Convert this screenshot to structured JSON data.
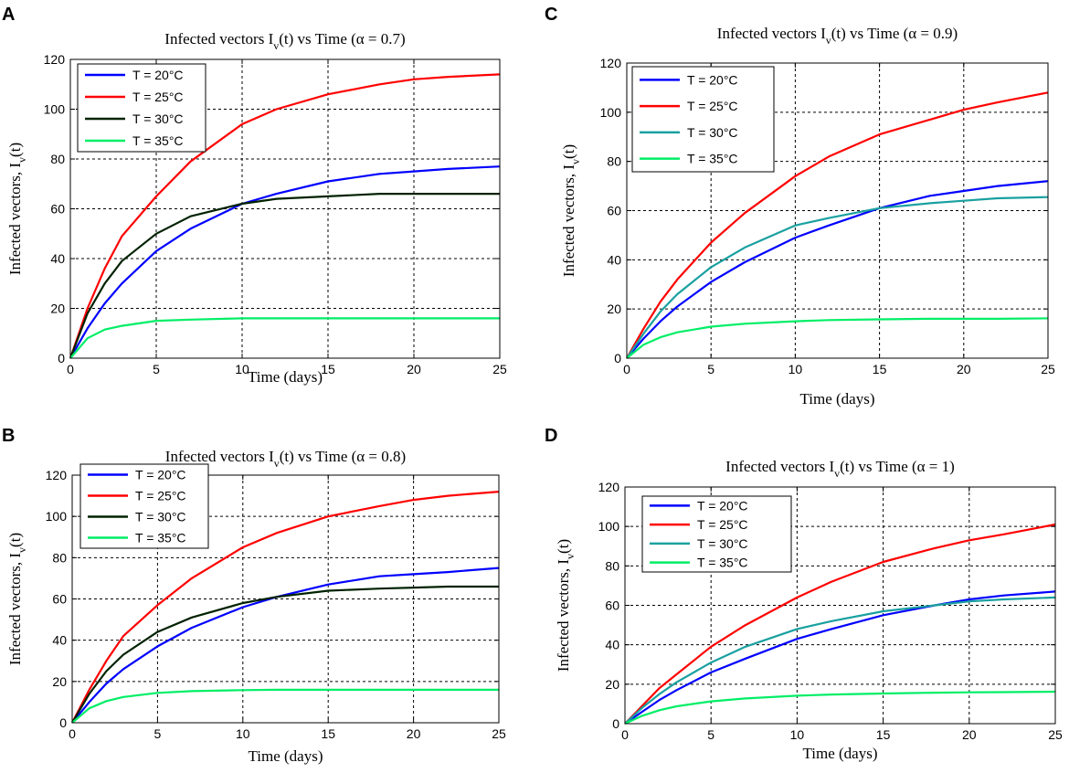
{
  "figure": {
    "panels": [
      "A",
      "B",
      "C",
      "D"
    ]
  },
  "chart_data": [
    {
      "panel": "A",
      "type": "line",
      "title": "Infected vectors I_v(t) vs Time (α = 0.7)",
      "title_main": "Infected vectors I",
      "title_sub": "v",
      "title_rest": "(t) vs Time (α = 0.7)",
      "xlabel": "Time (days)",
      "ylabel": "Infected vectors, I_v(t)",
      "ylabel_main": "Infected vectors, I",
      "ylabel_sub": "v",
      "ylabel_rest": "(t)",
      "xlim": [
        0,
        25
      ],
      "ylim": [
        0,
        120
      ],
      "xticks": [
        0,
        5,
        10,
        15,
        20,
        25
      ],
      "yticks": [
        0,
        20,
        40,
        60,
        80,
        100,
        120
      ],
      "grid": true,
      "legend_position": "top-left",
      "series": [
        {
          "name": "T = 20°C",
          "color": "#0000ff",
          "x": [
            0,
            1,
            2,
            3,
            5,
            7,
            10,
            12,
            15,
            18,
            20,
            22,
            25
          ],
          "values": [
            0,
            12,
            22,
            30,
            43,
            52,
            62,
            66,
            71,
            74,
            75,
            76,
            77
          ]
        },
        {
          "name": "T = 25°C",
          "color": "#ff0000",
          "x": [
            0,
            1,
            2,
            3,
            5,
            7,
            10,
            12,
            15,
            18,
            20,
            22,
            25
          ],
          "values": [
            0,
            20,
            36,
            49,
            65,
            79,
            94,
            100,
            106,
            110,
            112,
            113,
            114
          ]
        },
        {
          "name": "T = 30°C",
          "color": "#002200",
          "x": [
            0,
            1,
            2,
            3,
            5,
            7,
            10,
            12,
            15,
            18,
            20,
            22,
            25
          ],
          "values": [
            0,
            18,
            30,
            39,
            50,
            57,
            62,
            64,
            65,
            66,
            66,
            66,
            66
          ]
        },
        {
          "name": "T = 35°C",
          "color": "#00ee66",
          "x": [
            0,
            1,
            2,
            3,
            5,
            7,
            10,
            12,
            15,
            18,
            20,
            22,
            25
          ],
          "values": [
            0,
            8,
            11.5,
            13,
            15,
            15.5,
            16,
            16,
            16,
            16,
            16,
            16,
            16
          ]
        }
      ]
    },
    {
      "panel": "B",
      "type": "line",
      "title": "Infected vectors I_v(t) vs Time (α = 0.8)",
      "title_main": "Infected vectors I",
      "title_sub": "v",
      "title_rest": "(t) vs Time (α = 0.8)",
      "xlabel": "Time (days)",
      "ylabel": "Infected vectors, I_v(t)",
      "ylabel_main": "Infected vectors, I",
      "ylabel_sub": "v",
      "ylabel_rest": "(t)",
      "xlim": [
        0,
        25
      ],
      "ylim": [
        0,
        120
      ],
      "xticks": [
        0,
        5,
        10,
        15,
        20,
        25
      ],
      "yticks": [
        0,
        20,
        40,
        60,
        80,
        100,
        120
      ],
      "grid": true,
      "legend_position": "top-left",
      "series": [
        {
          "name": "T = 20°C",
          "color": "#0000ff",
          "x": [
            0,
            1,
            2,
            3,
            5,
            7,
            10,
            12,
            15,
            18,
            20,
            22,
            25
          ],
          "values": [
            0,
            10,
            19,
            26,
            37,
            46,
            56,
            61,
            67,
            71,
            72,
            73,
            75
          ]
        },
        {
          "name": "T = 25°C",
          "color": "#ff0000",
          "x": [
            0,
            1,
            2,
            3,
            5,
            7,
            10,
            12,
            15,
            18,
            20,
            22,
            25
          ],
          "values": [
            0,
            16,
            30,
            42,
            57,
            70,
            85,
            92,
            100,
            105,
            108,
            110,
            112
          ]
        },
        {
          "name": "T = 30°C",
          "color": "#002200",
          "x": [
            0,
            1,
            2,
            3,
            5,
            7,
            10,
            12,
            15,
            18,
            20,
            22,
            25
          ],
          "values": [
            0,
            14,
            25,
            33,
            44,
            51,
            58,
            61,
            64,
            65,
            65.5,
            66,
            66
          ]
        },
        {
          "name": "T = 35°C",
          "color": "#00ee66",
          "x": [
            0,
            1,
            2,
            3,
            5,
            7,
            10,
            12,
            15,
            18,
            20,
            22,
            25
          ],
          "values": [
            0,
            7,
            10.5,
            12.5,
            14.5,
            15.3,
            15.8,
            16,
            16,
            16,
            16,
            16,
            16
          ]
        }
      ]
    },
    {
      "panel": "C",
      "type": "line",
      "title": "Infected vectors I_v(t) vs Time (α = 0.9)",
      "title_main": "Infected vectors I",
      "title_sub": "v",
      "title_rest": "(t) vs Time (α = 0.9)",
      "xlabel": "Time (days)",
      "ylabel": "Infected vectors, I_v(t)",
      "ylabel_main": "Infected vectors, I",
      "ylabel_sub": "v",
      "ylabel_rest": "(t)",
      "xlim": [
        0,
        25
      ],
      "ylim": [
        0,
        120
      ],
      "xticks": [
        0,
        5,
        10,
        15,
        20,
        25
      ],
      "yticks": [
        0,
        20,
        40,
        60,
        80,
        100,
        120
      ],
      "grid": true,
      "legend_position": "top-left",
      "series": [
        {
          "name": "T = 20°C",
          "color": "#0000ff",
          "x": [
            0,
            1,
            2,
            3,
            5,
            7,
            10,
            12,
            15,
            18,
            20,
            22,
            25
          ],
          "values": [
            0,
            8,
            15,
            21,
            31,
            39,
            49,
            54,
            61,
            66,
            68,
            70,
            72
          ]
        },
        {
          "name": "T = 25°C",
          "color": "#ff0000",
          "x": [
            0,
            1,
            2,
            3,
            5,
            7,
            10,
            12,
            15,
            18,
            20,
            22,
            25
          ],
          "values": [
            0,
            12,
            23,
            32,
            47,
            59,
            74,
            82,
            91,
            97,
            101,
            104,
            108
          ]
        },
        {
          "name": "T = 30°C",
          "color": "#1aa0a0",
          "x": [
            0,
            1,
            2,
            3,
            5,
            7,
            10,
            12,
            15,
            18,
            20,
            22,
            25
          ],
          "values": [
            0,
            10,
            19,
            26,
            37,
            45,
            54,
            57,
            61,
            63,
            64,
            65,
            65.5
          ]
        },
        {
          "name": "T = 35°C",
          "color": "#00ee66",
          "x": [
            0,
            1,
            2,
            3,
            5,
            7,
            10,
            12,
            15,
            18,
            20,
            22,
            25
          ],
          "values": [
            0,
            5.5,
            8.5,
            10.5,
            12.8,
            14,
            15,
            15.5,
            15.8,
            16,
            16,
            16,
            16.2
          ]
        }
      ]
    },
    {
      "panel": "D",
      "type": "line",
      "title": "Infected vectors I_v(t) vs Time (α = 1)",
      "title_main": "Infected vectors I",
      "title_sub": "v",
      "title_rest": "(t) vs Time (α = 1)",
      "xlabel": "Time (days)",
      "ylabel": "Infected vectors, I_v(t)",
      "ylabel_main": "Infected vectors, I",
      "ylabel_sub": "v",
      "ylabel_rest": "(t)",
      "xlim": [
        0,
        25
      ],
      "ylim": [
        0,
        120
      ],
      "xticks": [
        0,
        5,
        10,
        15,
        20,
        25
      ],
      "yticks": [
        0,
        20,
        40,
        60,
        80,
        100,
        120
      ],
      "grid": true,
      "legend_position": "top-left",
      "series": [
        {
          "name": "T = 20°C",
          "color": "#0000ff",
          "x": [
            0,
            1,
            2,
            3,
            5,
            7,
            10,
            12,
            15,
            18,
            20,
            22,
            25
          ],
          "values": [
            0,
            6,
            12,
            17,
            26,
            33,
            43,
            48,
            55,
            60,
            63,
            65,
            67
          ]
        },
        {
          "name": "T = 25°C",
          "color": "#ff0000",
          "x": [
            0,
            1,
            2,
            3,
            5,
            7,
            10,
            12,
            15,
            18,
            20,
            22,
            25
          ],
          "values": [
            0,
            9,
            18,
            25,
            39,
            50,
            64,
            72,
            82,
            89,
            93,
            96,
            101
          ]
        },
        {
          "name": "T = 30°C",
          "color": "#1aa0a0",
          "x": [
            0,
            1,
            2,
            3,
            5,
            7,
            10,
            12,
            15,
            18,
            20,
            22,
            25
          ],
          "values": [
            0,
            8,
            15,
            21,
            31,
            39,
            48,
            52,
            57,
            60,
            62,
            63,
            64
          ]
        },
        {
          "name": "T = 35°C",
          "color": "#00ee66",
          "x": [
            0,
            1,
            2,
            3,
            5,
            7,
            10,
            12,
            15,
            18,
            20,
            22,
            25
          ],
          "values": [
            0,
            4,
            6.8,
            8.8,
            11.3,
            12.8,
            14.2,
            14.8,
            15.3,
            15.7,
            15.9,
            16,
            16.2
          ]
        }
      ]
    }
  ]
}
